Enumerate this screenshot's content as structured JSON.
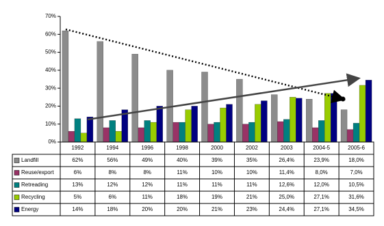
{
  "chart_data": {
    "type": "bar",
    "categories": [
      "1992",
      "1994",
      "1996",
      "1998",
      "2000",
      "2002",
      "2003",
      "2004-5",
      "2005-6"
    ],
    "ylim": [
      0,
      70
    ],
    "yticks": [
      {
        "value": 0,
        "label": "0%"
      },
      {
        "value": 10,
        "label": "10%"
      },
      {
        "value": 20,
        "label": "20%"
      },
      {
        "value": 30,
        "label": "30%"
      },
      {
        "value": 40,
        "label": "40%"
      },
      {
        "value": 50,
        "label": "50%"
      },
      {
        "value": 60,
        "label": "60%"
      },
      {
        "value": 70,
        "label": "70%"
      }
    ],
    "series": [
      {
        "name": "Landfill",
        "color": "#8c8c8c",
        "values": [
          62,
          56,
          49,
          40,
          39,
          35,
          26.4,
          23.9,
          18.0
        ],
        "value_labels": [
          "62%",
          "56%",
          "49%",
          "40%",
          "39%",
          "35%",
          "26,4%",
          "23,9%",
          "18,0%"
        ]
      },
      {
        "name": "Reuse/export",
        "color": "#993366",
        "values": [
          6,
          8,
          8,
          11,
          10,
          10,
          11.4,
          8.0,
          7.0
        ],
        "value_labels": [
          "6%",
          "8%",
          "8%",
          "11%",
          "10%",
          "10%",
          "11,4%",
          "8,0%",
          "7,0%"
        ]
      },
      {
        "name": "Retreading",
        "color": "#008080",
        "values": [
          13,
          12,
          12,
          11,
          11,
          11,
          12.6,
          12.0,
          10.5
        ],
        "value_labels": [
          "13%",
          "12%",
          "12%",
          "11%",
          "11%",
          "11%",
          "12,6%",
          "12,0%",
          "10,5%"
        ]
      },
      {
        "name": "Recycling",
        "color": "#99cc00",
        "values": [
          5,
          6,
          11,
          18,
          19,
          21,
          25.0,
          27.1,
          31.6
        ],
        "value_labels": [
          "5%",
          "6%",
          "11%",
          "18%",
          "19%",
          "21%",
          "25,0%",
          "27,1%",
          "31,6%"
        ]
      },
      {
        "name": "Energy",
        "color": "#000080",
        "values": [
          14,
          18,
          20,
          20,
          21,
          23,
          24.4,
          27.1,
          34.5
        ],
        "value_labels": [
          "14%",
          "18%",
          "20%",
          "20%",
          "21%",
          "23%",
          "24,4%",
          "27,1%",
          "34,5%"
        ]
      }
    ]
  }
}
